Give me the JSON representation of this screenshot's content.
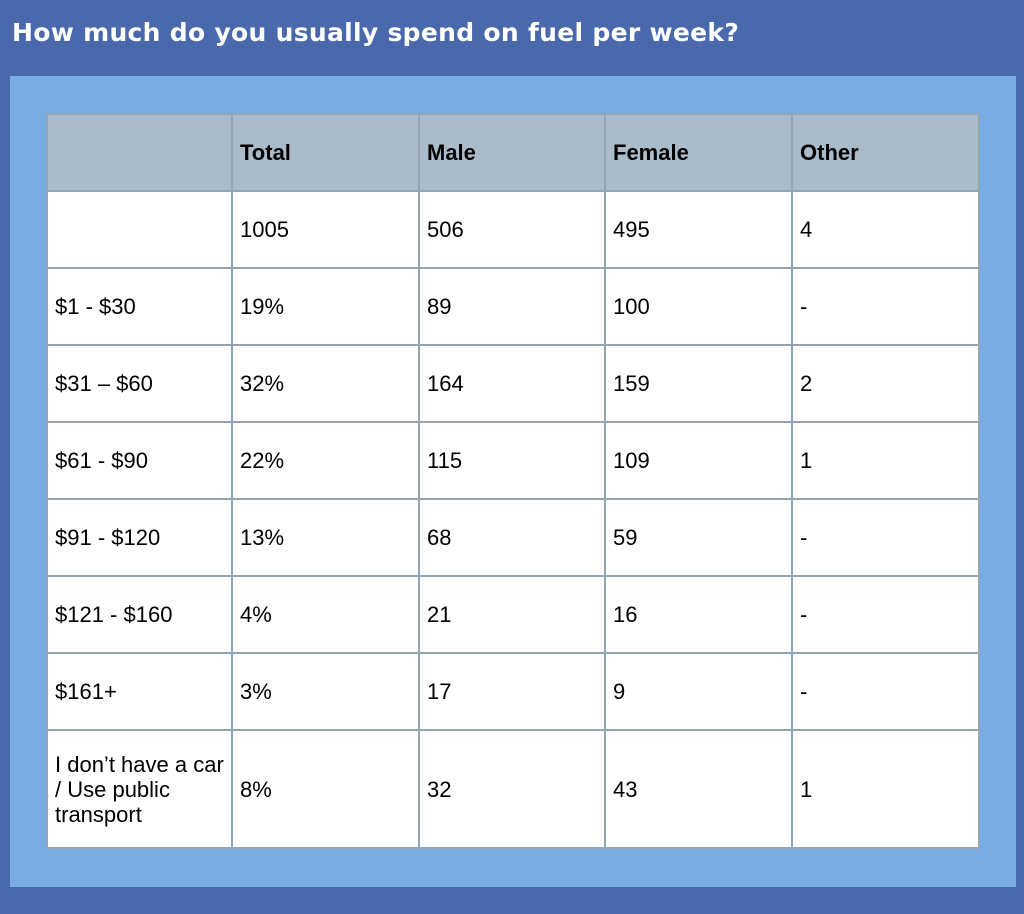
{
  "header": {
    "title": "How much do you usually spend on fuel per week?"
  },
  "chart_data": {
    "type": "table",
    "columns": [
      "",
      "Total",
      "Male",
      "Female",
      "Other"
    ],
    "rows": [
      [
        "",
        "1005",
        "506",
        "495",
        "4"
      ],
      [
        "$1 - $30",
        "19%",
        "89",
        "100",
        "-"
      ],
      [
        "$31 – $60",
        "32%",
        "164",
        "159",
        "2"
      ],
      [
        "$61 - $90",
        "22%",
        "115",
        "109",
        "1"
      ],
      [
        "$91 - $120",
        "13%",
        "68",
        "59",
        "-"
      ],
      [
        "$121 - $160",
        "4%",
        "21",
        "16",
        "-"
      ],
      [
        "$161+",
        "3%",
        "17",
        "9",
        "-"
      ],
      [
        "I don’t have a car / Use public transport",
        "8%",
        "32",
        "43",
        "1"
      ]
    ]
  },
  "colors": {
    "background": "#4a69ad",
    "panel": "#78ace3",
    "header_row": "#aabbc9",
    "cell": "#ffffff",
    "border": "#93a4b2"
  }
}
